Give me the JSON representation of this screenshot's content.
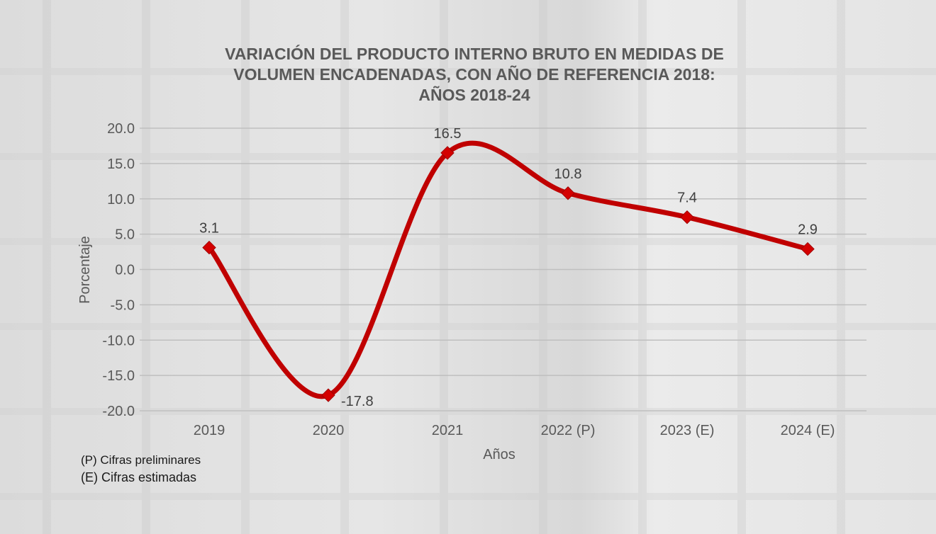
{
  "chart_data": {
    "type": "line",
    "title": [
      "VARIACIÓN DEL PRODUCTO INTERNO BRUTO EN MEDIDAS DE",
      "VOLUMEN ENCADENADAS, CON AÑO DE REFERENCIA 2018:",
      "AÑOS 2018-24"
    ],
    "xlabel": "Años",
    "ylabel": "Porcentaje",
    "categories": [
      "2019",
      "2020",
      "2021",
      "2022 (P)",
      "2023 (E)",
      "2024 (E)"
    ],
    "series": [
      {
        "values": [
          3.1,
          -17.8,
          16.5,
          10.8,
          7.4,
          2.9
        ],
        "data_labels": [
          "3.1",
          "-17.8",
          "16.5",
          "10.8",
          "7.4",
          "2.9"
        ]
      }
    ],
    "ylim": [
      -20,
      20
    ],
    "yticks": [
      "20.0",
      "15.0",
      "10.0",
      "5.0",
      "0.0",
      "-5.0",
      "-10.0",
      "-15.0",
      "-20.0"
    ],
    "grid": true,
    "smooth": true,
    "marker": "diamond",
    "line_color": "#c00000"
  },
  "notes": [
    "(P) Cifras preliminares",
    "(E) Cifras estimadas"
  ]
}
